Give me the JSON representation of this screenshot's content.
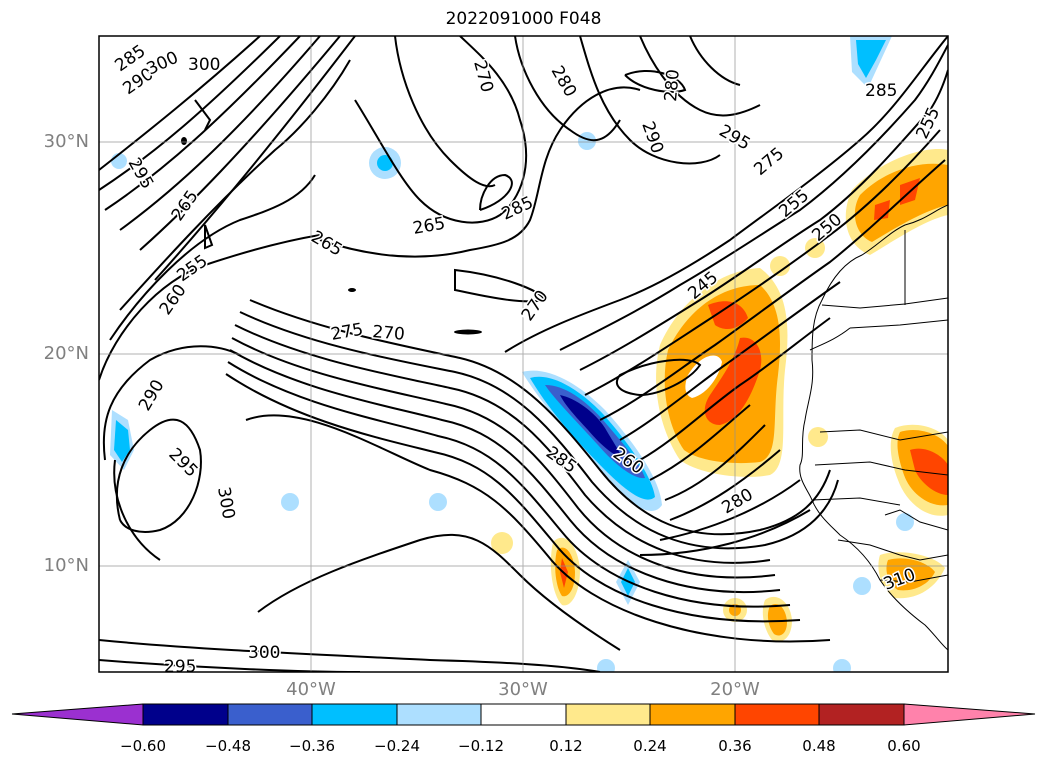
{
  "title": "2022091000 F048",
  "map": {
    "lat_labels": [
      "30°N",
      "20°N",
      "10°N"
    ],
    "lon_labels": [
      "40°W",
      "30°W",
      "20°W"
    ],
    "contour_labels": [
      "285",
      "290",
      "300",
      "300",
      "295",
      "265",
      "255",
      "260",
      "290",
      "295",
      "300",
      "270",
      "280",
      "280",
      "290",
      "295",
      "285",
      "285",
      "265",
      "265",
      "270",
      "275",
      "270",
      "245",
      "275",
      "255",
      "250",
      "255",
      "285",
      "260",
      "280",
      "310",
      "295",
      "300"
    ],
    "colors": {
      "purple": "#9b30d0",
      "navy": "#00008b",
      "royal_blue": "#3a5fcd",
      "deep_sky": "#00bfff",
      "light_blue": "#addfff",
      "white": "#ffffff",
      "light_yellow": "#ffe98c",
      "orange": "#ffa500",
      "red_orange": "#ff4500",
      "firebrick": "#b22222",
      "pink": "#ff82ab"
    }
  },
  "colorbar": {
    "ticks": [
      "−0.60",
      "−0.48",
      "−0.36",
      "−0.24",
      "−0.12",
      "0.12",
      "0.24",
      "0.36",
      "0.48",
      "0.60"
    ]
  }
}
